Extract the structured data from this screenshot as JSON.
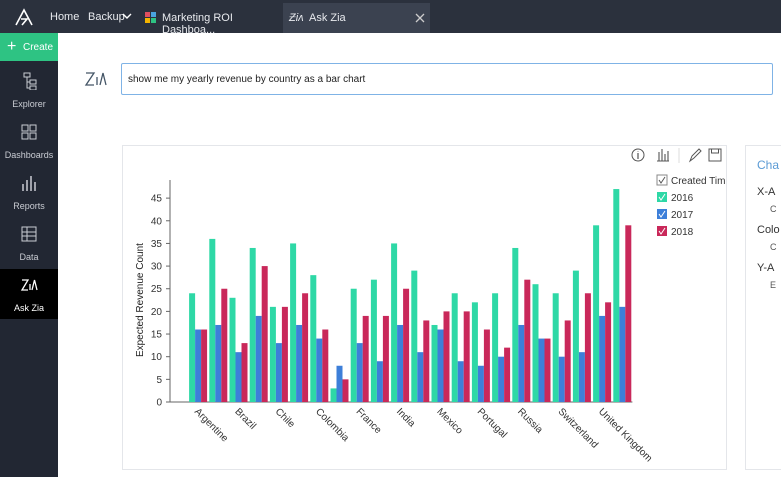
{
  "app": {
    "nav": {
      "home": "Home",
      "backup": "Backup"
    },
    "tabs": [
      "Marketing ROI Dashboa...",
      "Ask Zia"
    ],
    "sidebar": {
      "create": "Create",
      "items": [
        "Explorer",
        "Dashboards",
        "Reports",
        "Data",
        "Ask Zia"
      ]
    },
    "query": "show me my yearly revenue by country as a bar chart",
    "panel": {
      "title": "Cha",
      "sections": [
        "X-A",
        "Colo",
        "Y-A"
      ],
      "subitems": [
        "C",
        "C",
        "E"
      ]
    }
  },
  "chart_data": {
    "type": "bar",
    "y_label": "Expected Revenue Count",
    "legend_title": "Created Tim",
    "categories": [
      "Argentine",
      null,
      "Brazil",
      null,
      "Chile",
      null,
      "Colombia",
      null,
      "France",
      null,
      "India",
      null,
      "Mexico",
      null,
      "Portugal",
      null,
      "Russia",
      null,
      "Switzerland",
      null,
      "United Kingdom",
      null
    ],
    "series": [
      {
        "name": "2016",
        "color": "#2ed8a6",
        "values": [
          24,
          36,
          23,
          34,
          21,
          35,
          28,
          3,
          25,
          27,
          35,
          29,
          17,
          24,
          22,
          24,
          34,
          26,
          24,
          29,
          39,
          47
        ]
      },
      {
        "name": "2017",
        "color": "#3d7fd9",
        "values": [
          16,
          17,
          11,
          19,
          13,
          17,
          14,
          8,
          13,
          9,
          17,
          11,
          16,
          9,
          8,
          10,
          17,
          14,
          10,
          11,
          19,
          21
        ]
      },
      {
        "name": "2018",
        "color": "#c9285a",
        "values": [
          16,
          25,
          13,
          30,
          21,
          24,
          16,
          5,
          19,
          19,
          25,
          18,
          20,
          20,
          16,
          12,
          27,
          14,
          18,
          24,
          22,
          39
        ]
      }
    ],
    "ylim": [
      0,
      49
    ],
    "yticks": [
      0,
      5,
      10,
      15,
      20,
      25,
      30,
      35,
      40,
      45
    ],
    "grid": false
  }
}
